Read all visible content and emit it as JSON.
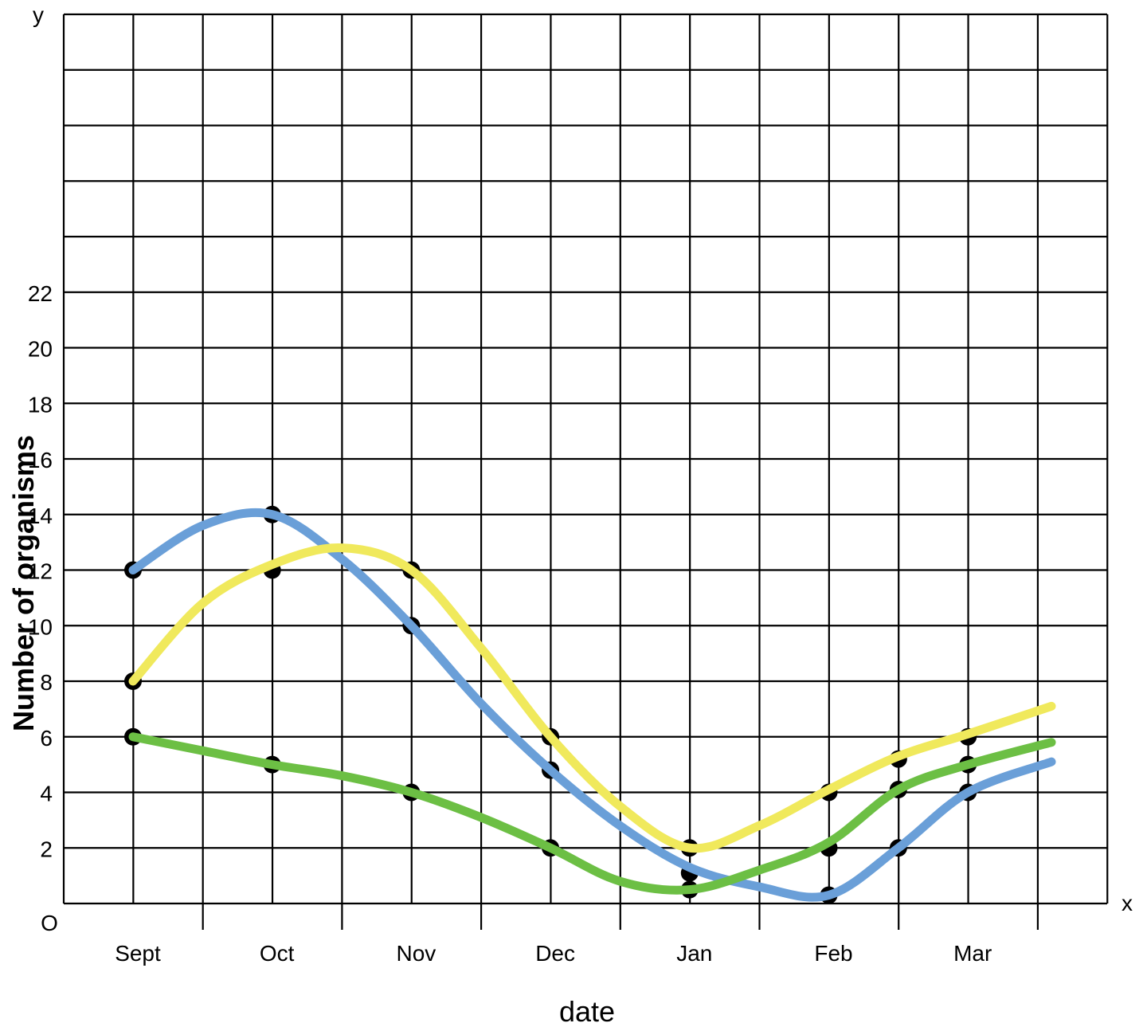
{
  "chart_data": {
    "type": "line",
    "title": "",
    "xlabel": "date",
    "ylabel": "Number of organisms",
    "x_axis_letter": "x",
    "y_axis_letter": "y",
    "origin_label": "O",
    "categories": [
      "Sept",
      "Oct",
      "Nov",
      "Dec",
      "Jan",
      "Feb",
      "Mar"
    ],
    "yticks": [
      2,
      4,
      6,
      8,
      10,
      12,
      14,
      16,
      18,
      20,
      22
    ],
    "ylim": [
      0,
      32
    ],
    "grid": true,
    "series": [
      {
        "color": "#6a9fd8",
        "points": [
          [
            0,
            12
          ],
          [
            0.5,
            13.6
          ],
          [
            1,
            14
          ],
          [
            1.5,
            12.4
          ],
          [
            2,
            10
          ],
          [
            2.5,
            7.2
          ],
          [
            3,
            4.8
          ],
          [
            3.5,
            2.8
          ],
          [
            4,
            1.3
          ],
          [
            4.5,
            0.6
          ],
          [
            5,
            0.3
          ],
          [
            5.5,
            2
          ],
          [
            6,
            4
          ],
          [
            6.6,
            5.1
          ]
        ]
      },
      {
        "color": "#f0e95c",
        "points": [
          [
            0,
            8
          ],
          [
            0.5,
            10.8
          ],
          [
            1,
            12.2
          ],
          [
            1.5,
            12.8
          ],
          [
            2,
            12
          ],
          [
            2.5,
            9.2
          ],
          [
            3,
            6
          ],
          [
            3.5,
            3.5
          ],
          [
            4,
            2
          ],
          [
            4.5,
            2.8
          ],
          [
            5,
            4.1
          ],
          [
            5.5,
            5.3
          ],
          [
            6,
            6.1
          ],
          [
            6.6,
            7.1
          ]
        ]
      },
      {
        "color": "#6cbf44",
        "points": [
          [
            0,
            6
          ],
          [
            0.5,
            5.5
          ],
          [
            1,
            5
          ],
          [
            1.5,
            4.6
          ],
          [
            2,
            4
          ],
          [
            2.5,
            3.1
          ],
          [
            3,
            2
          ],
          [
            3.5,
            0.8
          ],
          [
            4,
            0.5
          ],
          [
            4.5,
            1.2
          ],
          [
            5,
            2.2
          ],
          [
            5.5,
            4.1
          ],
          [
            6,
            5
          ],
          [
            6.6,
            5.8
          ]
        ]
      }
    ],
    "markers": [
      [
        0,
        12
      ],
      [
        0,
        8
      ],
      [
        0,
        6
      ],
      [
        1,
        14
      ],
      [
        1,
        12
      ],
      [
        1,
        5
      ],
      [
        2,
        12
      ],
      [
        2,
        10
      ],
      [
        2,
        4
      ],
      [
        3,
        6
      ],
      [
        3,
        4.8
      ],
      [
        3,
        2
      ],
      [
        4,
        2
      ],
      [
        4,
        1.1
      ],
      [
        4,
        0.5
      ],
      [
        5,
        4
      ],
      [
        5,
        2
      ],
      [
        5,
        0.3
      ],
      [
        5.5,
        5.2
      ],
      [
        5.5,
        4.1
      ],
      [
        5.5,
        2
      ],
      [
        6,
        6
      ],
      [
        6,
        5
      ],
      [
        6,
        4
      ]
    ]
  }
}
